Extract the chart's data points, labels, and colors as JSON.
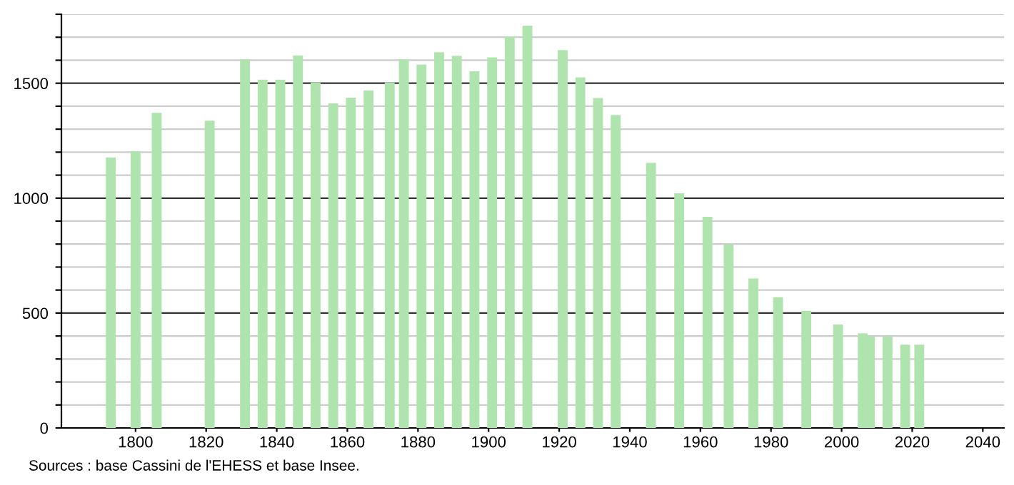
{
  "chart_data": {
    "type": "bar",
    "x": [
      1793,
      1800,
      1806,
      1821,
      1831,
      1836,
      1841,
      1846,
      1851,
      1856,
      1861,
      1866,
      1872,
      1876,
      1881,
      1886,
      1891,
      1896,
      1901,
      1906,
      1911,
      1921,
      1926,
      1931,
      1936,
      1946,
      1954,
      1962,
      1968,
      1975,
      1982,
      1990,
      1999,
      2006,
      2008,
      2013,
      2018,
      2022
    ],
    "values": [
      1177,
      1204,
      1371,
      1337,
      1604,
      1515,
      1515,
      1621,
      1504,
      1412,
      1437,
      1469,
      1504,
      1604,
      1581,
      1635,
      1619,
      1552,
      1612,
      1702,
      1750,
      1644,
      1525,
      1435,
      1362,
      1154,
      1021,
      919,
      798,
      650,
      569,
      510,
      450,
      412,
      398,
      398,
      362,
      362
    ],
    "color": "#b0e4ae",
    "xlim": [
      1779,
      2046
    ],
    "xticks": [
      1800,
      1820,
      1840,
      1860,
      1880,
      1900,
      1920,
      1940,
      1960,
      1980,
      2000,
      2020,
      2040
    ],
    "ylim": [
      0,
      1800
    ],
    "yticks": [
      0,
      {
        "value": 100,
        "label": null
      },
      {
        "value": 200,
        "label": null
      },
      {
        "value": 300,
        "label": null
      },
      {
        "value": 400,
        "label": null
      },
      500,
      {
        "value": 600,
        "label": null
      },
      {
        "value": 700,
        "label": null
      },
      {
        "value": 800,
        "label": null
      },
      {
        "value": 900,
        "label": null
      },
      1000,
      {
        "value": 1100,
        "label": null
      },
      {
        "value": 1200,
        "label": null
      },
      {
        "value": 1300,
        "label": null
      },
      {
        "value": 1400,
        "label": null
      },
      1500,
      {
        "value": 1600,
        "label": null
      },
      {
        "value": 1700,
        "label": null
      },
      {
        "value": 1800,
        "label": null
      }
    ],
    "grid": "y",
    "annotations": [
      "Sources : base Cassini de l'EHESS et base Insee."
    ]
  }
}
